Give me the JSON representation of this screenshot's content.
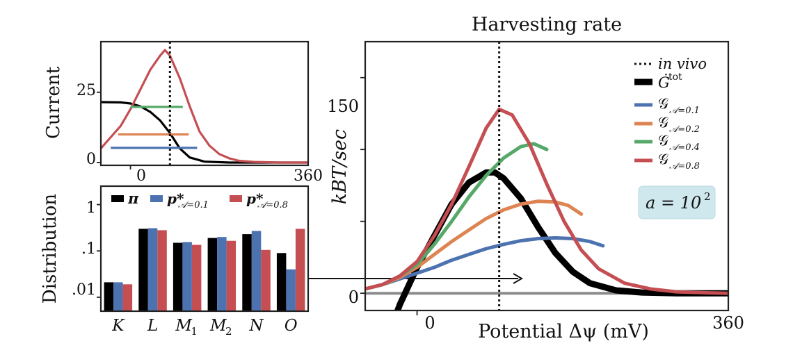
{
  "colors": {
    "black": "#000000",
    "blue": "#4C72B0",
    "orange": "#DD8452",
    "green": "#55A868",
    "red": "#C44E52",
    "grey": "#8c8c8c",
    "annotation_bg": "#cfe8ee"
  },
  "chart_data": [
    {
      "type": "line",
      "panel": "current",
      "xlabel": "",
      "ylabel": "Current",
      "xlim": [
        -60,
        360
      ],
      "ylim": [
        -1,
        43
      ],
      "x_ticks": [
        "0",
        "360"
      ],
      "y_ticks": [
        "0",
        "25"
      ],
      "vline_x": 80,
      "series": [
        {
          "color": "black",
          "x": [
            -60,
            -20,
            0,
            20,
            40,
            60,
            80,
            100,
            120,
            150,
            200,
            360
          ],
          "y": [
            21.5,
            21.4,
            21,
            20,
            18,
            15,
            10.5,
            5,
            1.8,
            0.3,
            0,
            0
          ]
        },
        {
          "color": "red",
          "x": [
            -60,
            -40,
            -20,
            0,
            20,
            40,
            60,
            70,
            80,
            100,
            120,
            140,
            160,
            180,
            200,
            220,
            250,
            300,
            360
          ],
          "y": [
            5,
            9,
            13,
            19,
            26,
            33,
            38,
            40,
            38,
            30,
            20,
            11,
            6,
            3,
            1.5,
            0.6,
            0.2,
            0,
            0
          ]
        },
        {
          "color": "green",
          "x": [
            0,
            106
          ],
          "y": [
            19.8,
            19.8
          ]
        },
        {
          "color": "orange",
          "x": [
            -25,
            118
          ],
          "y": [
            10,
            10
          ]
        },
        {
          "color": "blue",
          "x": [
            -40,
            135
          ],
          "y": [
            5.2,
            5.2
          ]
        }
      ]
    },
    {
      "type": "bar",
      "panel": "distribution",
      "ylabel": "Distribution",
      "log_scale": true,
      "ylim": [
        0.005,
        2.5
      ],
      "y_ticks": [
        ".01",
        ".1",
        "1"
      ],
      "categories": [
        "K",
        "L",
        "M1",
        "M2",
        "N",
        "O"
      ],
      "category_labels": [
        {
          "main": "K",
          "sub": ""
        },
        {
          "main": "L",
          "sub": ""
        },
        {
          "main": "M",
          "sub": "1"
        },
        {
          "main": "M",
          "sub": "2"
        },
        {
          "main": "N",
          "sub": ""
        },
        {
          "main": "O",
          "sub": ""
        }
      ],
      "series": [
        {
          "color": "black",
          "legend_main": "π",
          "legend_sub": "",
          "values": [
            0.021,
            0.3,
            0.15,
            0.19,
            0.23,
            0.09
          ]
        },
        {
          "color": "blue",
          "legend_main": "p*",
          "legend_sub": "𝒜=0.1",
          "values": [
            0.021,
            0.31,
            0.155,
            0.2,
            0.27,
            0.04
          ]
        },
        {
          "color": "red",
          "legend_main": "p*",
          "legend_sub": "𝒜=0.8",
          "values": [
            0.019,
            0.28,
            0.135,
            0.165,
            0.105,
            0.3
          ]
        }
      ]
    },
    {
      "type": "line",
      "panel": "harvesting",
      "title": "Harvesting rate",
      "xlabel": "Potential Δψ (mV)",
      "ylabel": "kBT/sec",
      "xlim": [
        -60,
        360
      ],
      "ylim": [
        -12,
        175
      ],
      "x_ticks": [
        "0",
        "360"
      ],
      "y_ticks": [
        "0",
        "150"
      ],
      "y_minor_ticks": [
        50,
        100
      ],
      "vline_x": 95,
      "vline_label": "in vivo",
      "annotation": "a = 10",
      "annotation_sup": "2",
      "series": [
        {
          "color": "grey",
          "x": [
            -60,
            360
          ],
          "y": [
            0,
            0
          ]
        },
        {
          "color": "black",
          "legend_main": "Ġ",
          "legend_sup": "tot",
          "x": [
            -40,
            -20,
            0,
            20,
            40,
            60,
            80,
            90,
            100,
            120,
            140,
            160,
            180,
            200,
            230,
            260,
            300,
            360
          ],
          "y": [
            -40,
            -8,
            18,
            40,
            62,
            77,
            84,
            84,
            80,
            66,
            46,
            28,
            15,
            7,
            2,
            0.5,
            0,
            0
          ]
        },
        {
          "color": "blue",
          "legend_main": "𝒢",
          "legend_sub": "𝒜=0.1",
          "x": [
            -60,
            -40,
            -20,
            0,
            20,
            40,
            60,
            80,
            100,
            120,
            140,
            160,
            180,
            200,
            215
          ],
          "y": [
            3,
            6,
            10,
            14,
            18,
            23,
            27,
            31,
            34,
            36.5,
            38,
            38.5,
            38,
            36,
            33
          ]
        },
        {
          "color": "orange",
          "legend_main": "𝒢",
          "legend_sub": "𝒜=0.2",
          "x": [
            -60,
            -40,
            -20,
            0,
            20,
            40,
            60,
            80,
            100,
            120,
            140,
            160,
            175,
            190
          ],
          "y": [
            3,
            6,
            11,
            18,
            27,
            36,
            44,
            52,
            58,
            62,
            64,
            63.5,
            61,
            55
          ]
        },
        {
          "color": "green",
          "legend_main": "𝒢",
          "legend_sub": "𝒜=0.4",
          "x": [
            -60,
            -40,
            -20,
            0,
            20,
            40,
            60,
            80,
            100,
            120,
            135,
            150
          ],
          "y": [
            3,
            6,
            12,
            20,
            34,
            50,
            67,
            82,
            94,
            102,
            104,
            100
          ]
        },
        {
          "color": "red",
          "legend_main": "𝒢",
          "legend_sub": "𝒜=0.8",
          "x": [
            -60,
            -40,
            -20,
            0,
            20,
            40,
            60,
            80,
            95,
            110,
            130,
            150,
            170,
            190,
            210,
            240,
            270,
            300,
            330,
            360
          ],
          "y": [
            3,
            6,
            12,
            22,
            40,
            62,
            88,
            115,
            128,
            124,
            104,
            76,
            50,
            30,
            17,
            7,
            3,
            1,
            0.4,
            0
          ]
        }
      ]
    }
  ]
}
